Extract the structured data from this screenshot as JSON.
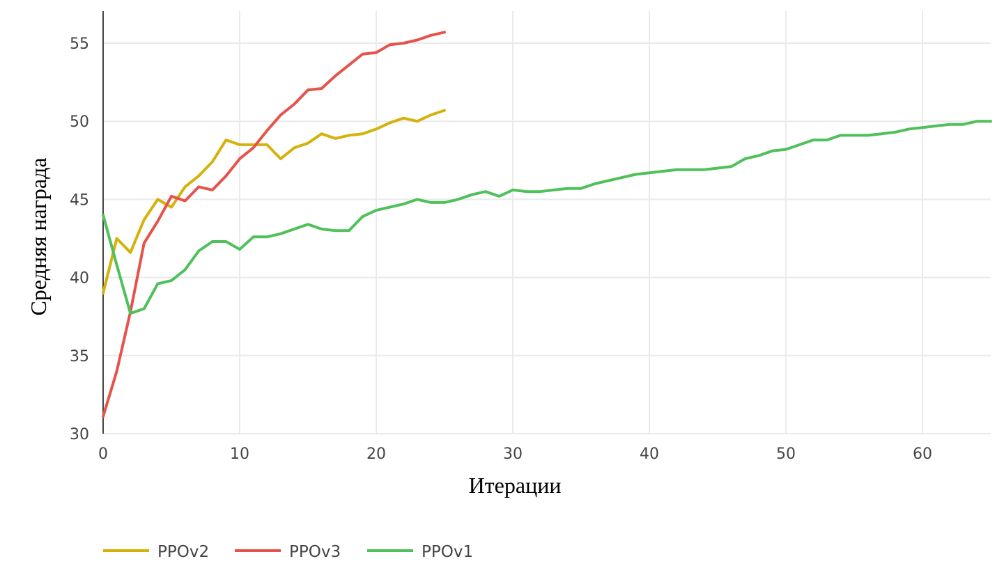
{
  "chart_data": {
    "type": "line",
    "title": "",
    "xlabel": "Итерации",
    "ylabel": "Средняя награда",
    "xlim": [
      0,
      65
    ],
    "ylim": [
      30,
      57
    ],
    "xticks": [
      0,
      10,
      20,
      30,
      40,
      50,
      60
    ],
    "yticks": [
      30,
      35,
      40,
      45,
      50,
      55
    ],
    "grid": true,
    "legend_position": "bottom-left",
    "series": [
      {
        "name": "PPOv2",
        "color": "#d4b20c",
        "x": [
          0,
          1,
          2,
          3,
          4,
          5,
          6,
          7,
          8,
          9,
          10,
          11,
          12,
          13,
          14,
          15,
          16,
          17,
          18,
          19,
          20,
          21,
          22,
          23,
          24,
          25
        ],
        "y": [
          39.0,
          42.5,
          41.6,
          43.7,
          45.0,
          44.5,
          45.8,
          46.5,
          47.4,
          48.8,
          48.5,
          48.5,
          48.5,
          47.6,
          48.3,
          48.6,
          49.2,
          48.9,
          49.1,
          49.2,
          49.5,
          49.9,
          50.2,
          50.0,
          50.4,
          50.7
        ]
      },
      {
        "name": "PPOv3",
        "color": "#e5534b",
        "x": [
          0,
          1,
          2,
          3,
          4,
          5,
          6,
          7,
          8,
          9,
          10,
          11,
          12,
          13,
          14,
          15,
          16,
          17,
          18,
          19,
          20,
          21,
          22,
          23,
          24,
          25
        ],
        "y": [
          31.1,
          34.0,
          37.8,
          42.2,
          43.6,
          45.2,
          44.9,
          45.8,
          45.6,
          46.5,
          47.6,
          48.3,
          49.4,
          50.4,
          51.1,
          52.0,
          52.1,
          52.9,
          53.6,
          54.3,
          54.4,
          54.9,
          55.0,
          55.2,
          55.5,
          55.7
        ]
      },
      {
        "name": "PPOv1",
        "color": "#4fc05a",
        "x": [
          0,
          1,
          2,
          3,
          4,
          5,
          6,
          7,
          8,
          9,
          10,
          11,
          12,
          13,
          14,
          15,
          16,
          17,
          18,
          19,
          20,
          21,
          22,
          23,
          24,
          25,
          26,
          27,
          28,
          29,
          30,
          31,
          32,
          33,
          34,
          35,
          36,
          37,
          38,
          39,
          40,
          41,
          42,
          43,
          44,
          45,
          46,
          47,
          48,
          49,
          50,
          51,
          52,
          53,
          54,
          55,
          56,
          57,
          58,
          59,
          60,
          61,
          62,
          63,
          64,
          65
        ],
        "y": [
          44.0,
          40.8,
          37.7,
          38.0,
          39.6,
          39.8,
          40.5,
          41.7,
          42.3,
          42.3,
          41.8,
          42.6,
          42.6,
          42.8,
          43.1,
          43.4,
          43.1,
          43.0,
          43.0,
          43.9,
          44.3,
          44.5,
          44.7,
          45.0,
          44.8,
          44.8,
          45.0,
          45.3,
          45.5,
          45.2,
          45.6,
          45.5,
          45.5,
          45.6,
          45.7,
          45.7,
          46.0,
          46.2,
          46.4,
          46.6,
          46.7,
          46.8,
          46.9,
          46.9,
          46.9,
          47.0,
          47.1,
          47.6,
          47.8,
          48.1,
          48.2,
          48.5,
          48.8,
          48.8,
          49.1,
          49.1,
          49.1,
          49.2,
          49.3,
          49.5,
          49.6,
          49.7,
          49.8,
          49.8,
          50.0,
          50.0
        ]
      }
    ]
  }
}
